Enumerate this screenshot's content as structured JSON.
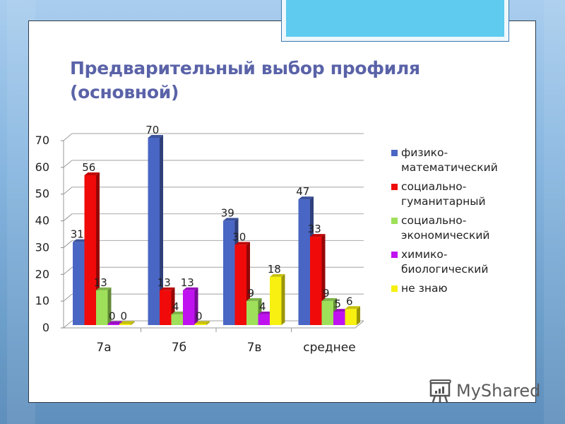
{
  "slide": {
    "title_line1": "Предварительный выбор профиля",
    "title_line2": "(основной)",
    "accent_color": "#5ecbef",
    "title_color": "#5a63a8"
  },
  "watermark": {
    "text": "MyShared",
    "icon": "presentation-board-icon"
  },
  "chart_data": {
    "type": "bar",
    "style": "3d-clustered-column",
    "title": "Предварительный выбор профиля (основной)",
    "xlabel": "",
    "ylabel": "",
    "ylim": [
      0,
      70
    ],
    "yticks": [
      0,
      10,
      20,
      30,
      40,
      50,
      60,
      70
    ],
    "grid": true,
    "legend_position": "right",
    "categories": [
      "7а",
      "7б",
      "7в",
      "среднее"
    ],
    "series": [
      {
        "name": "физико-математический",
        "label_lines": [
          "физико-",
          "математический"
        ],
        "color": "#4a66c4",
        "values": [
          31,
          70,
          39,
          47
        ]
      },
      {
        "name": "социально-гуманитарный",
        "label_lines": [
          "социально-",
          "гуманитарный"
        ],
        "color": "#f00a0a",
        "values": [
          56,
          13,
          30,
          33
        ]
      },
      {
        "name": "социально-экономический",
        "label_lines": [
          "социально-",
          "экономический"
        ],
        "color": "#9ee05a",
        "values": [
          13,
          4,
          9,
          9
        ]
      },
      {
        "name": "химико-биологический",
        "label_lines": [
          "химико-",
          "биологический"
        ],
        "color": "#c012f0",
        "values": [
          0,
          13,
          4,
          5
        ]
      },
      {
        "name": "не знаю",
        "label_lines": [
          "не знаю"
        ],
        "color": "#f7f010",
        "values": [
          0,
          0,
          18,
          6
        ]
      }
    ]
  }
}
